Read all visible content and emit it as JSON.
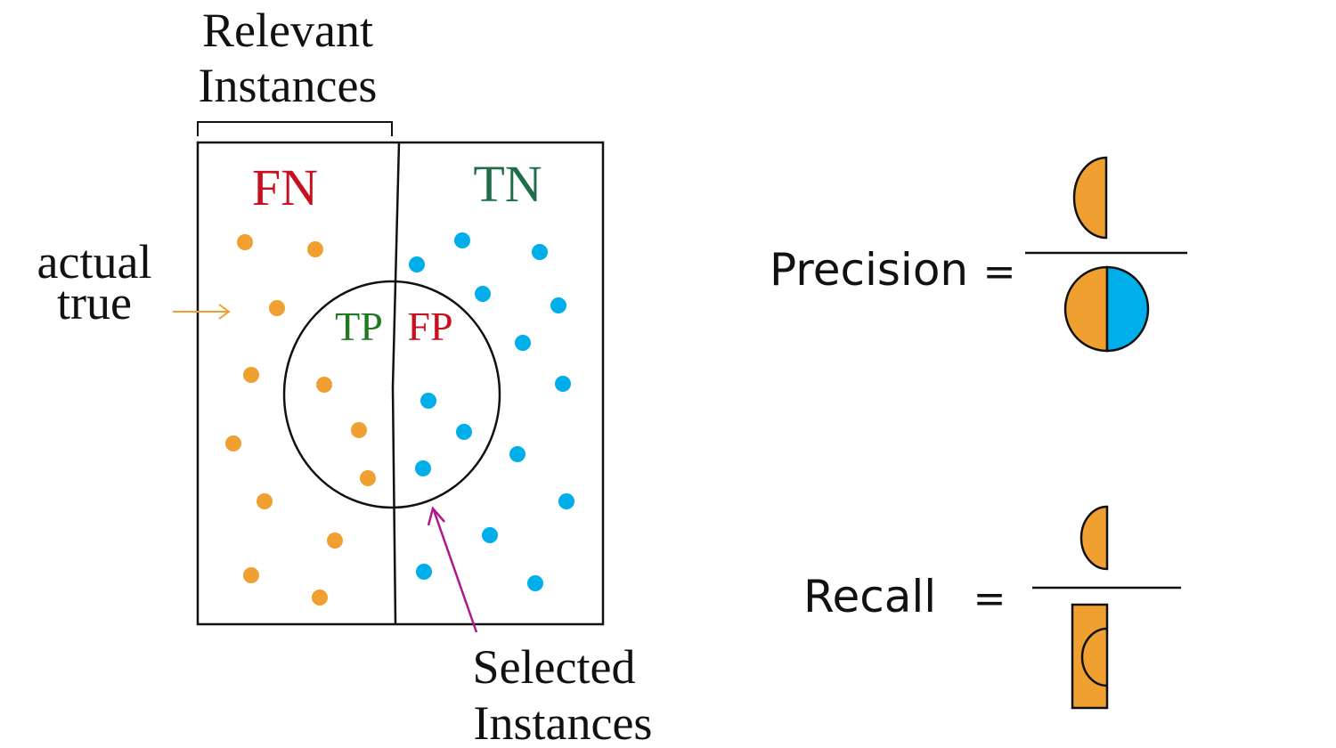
{
  "labels": {
    "relevant_line1": "Relevant",
    "relevant_line2": "Instances",
    "actual_line1": "actual",
    "actual_line2": "true",
    "selected_line1": "Selected",
    "selected_line2": "Instances",
    "fn": "FN",
    "tn": "TN",
    "tp": "TP",
    "fp": "FP"
  },
  "formulas": {
    "precision": {
      "name": "Precision",
      "equals": "="
    },
    "recall": {
      "name": "Recall",
      "equals": "="
    }
  },
  "colors": {
    "positive_dot": "#f0a030",
    "negative_dot": "#00aeea",
    "false_label": "#c8101e",
    "true_label_tn": "#1f6e4a",
    "true_label_tp": "#1f7a1f",
    "selected_arrow": "#b0188c",
    "actual_arrow": "#f0a030",
    "line": "#111111"
  },
  "icons": {
    "actual_arrow": "right-arrow-icon",
    "selected_arrow": "up-left-arrow-icon"
  }
}
